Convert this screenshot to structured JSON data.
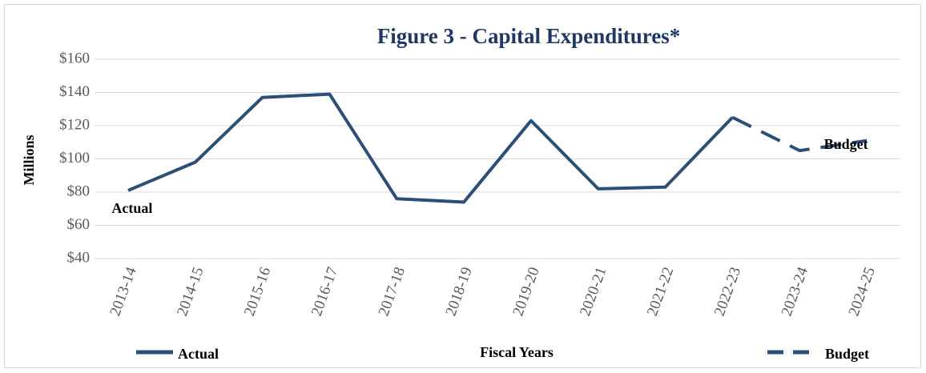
{
  "chart_data": {
    "type": "line",
    "title": "Figure 3 - Capital Expenditures*",
    "x_label": "Fiscal Years",
    "y_label": "Millions",
    "categories": [
      "2013-14",
      "2014-15",
      "2015-16",
      "2016-17",
      "2017-18",
      "2018-19",
      "2019-20",
      "2020-21",
      "2021-22",
      "2022-23",
      "2023-24",
      "2024-25"
    ],
    "series": [
      {
        "name": "Actual",
        "color": "#2b4f78",
        "dashed": false,
        "values": [
          81,
          98,
          137,
          139,
          76,
          74,
          123,
          82,
          83,
          125,
          null,
          null
        ]
      },
      {
        "name": "Budget",
        "color": "#2b4f78",
        "dashed": true,
        "values": [
          null,
          null,
          null,
          null,
          null,
          null,
          null,
          null,
          null,
          125,
          105,
          111
        ]
      }
    ],
    "annotations": [
      "Actual",
      "Budget"
    ],
    "ylim": [
      40,
      160
    ],
    "yticks": [
      {
        "value": 40,
        "label": "$40"
      },
      {
        "value": 60,
        "label": "$60"
      },
      {
        "value": 80,
        "label": "$80"
      },
      {
        "value": 100,
        "label": "$100"
      },
      {
        "value": 120,
        "label": "$120"
      },
      {
        "value": 140,
        "label": "$140"
      },
      {
        "value": 160,
        "label": "$160"
      }
    ],
    "grid": true
  }
}
